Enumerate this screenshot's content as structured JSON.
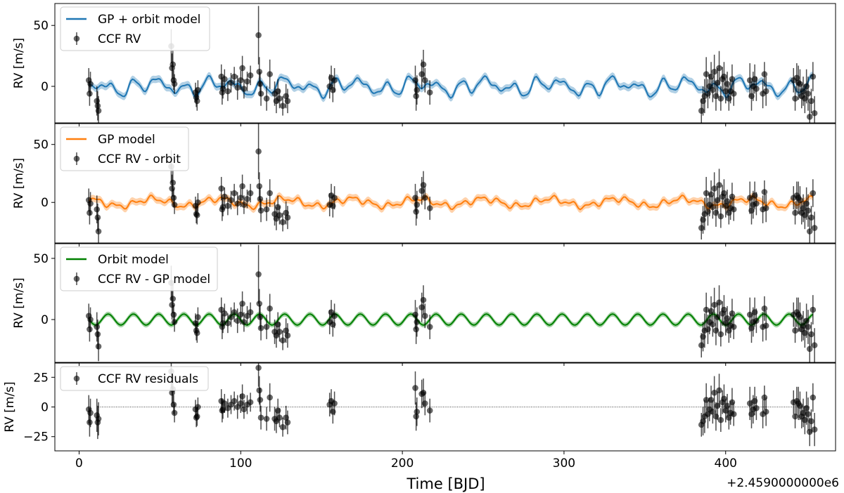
{
  "chart_data": {
    "type": "line",
    "xlabel": "Time [BJD]",
    "x_offset_label": "+2.4590000000e6",
    "xlim": [
      -15,
      468
    ],
    "xticks": [
      0,
      100,
      200,
      300,
      400
    ],
    "xtick_labels": [
      "0",
      "100",
      "200",
      "300",
      "400"
    ],
    "colors": {
      "blue": "#1f77b4",
      "orange": "#ff7f0e",
      "green": "#008000",
      "points": "#000000"
    },
    "observation_times": [
      6,
      6.5,
      7,
      11,
      11.5,
      12,
      57,
      57.5,
      58,
      58.5,
      59,
      72,
      72.5,
      73,
      73.5,
      88,
      88.5,
      89,
      90,
      92,
      94,
      96,
      98,
      100,
      101,
      102,
      104,
      106,
      111,
      111.5,
      112,
      112.5,
      116,
      118,
      121,
      122,
      123,
      124,
      126,
      128,
      129,
      155,
      156,
      157,
      158,
      208,
      208.5,
      209,
      212,
      213,
      214,
      217,
      385,
      386,
      387,
      388,
      389,
      390,
      391,
      392,
      393,
      394,
      395,
      396,
      397,
      398,
      399,
      400,
      401,
      402,
      403,
      404,
      405,
      415,
      416,
      417,
      418,
      419,
      423,
      424,
      425,
      442,
      443,
      444,
      445,
      446,
      447,
      448,
      449,
      450,
      451,
      452,
      453,
      454,
      455
    ],
    "panels": [
      {
        "ylabel": "RV [m/s]",
        "ylim": [
          -30,
          68
        ],
        "yticks": [
          0,
          50
        ],
        "ytick_labels": [
          "0",
          "50"
        ],
        "legend": [
          "GP + orbit model",
          "CCF RV"
        ],
        "model": "gp_plus_orbit",
        "model_color": "#1f77b4",
        "rv_values": [
          5,
          -6,
          2,
          -12,
          -16,
          -20,
          33,
          15,
          18,
          5,
          2,
          -5,
          -9,
          -12,
          -3,
          8,
          -5,
          -2,
          6,
          -4,
          3,
          8,
          -1,
          5,
          15,
          -2,
          4,
          9,
          42,
          12,
          2,
          -6,
          -10,
          10,
          -6,
          -12,
          -4,
          -10,
          -16,
          -8,
          -12,
          0,
          7,
          -3,
          5,
          5,
          -8,
          -3,
          10,
          18,
          5,
          -5,
          -20,
          -12,
          -8,
          10,
          -6,
          0,
          8,
          -3,
          12,
          -8,
          3,
          15,
          -10,
          6,
          8,
          -4,
          2,
          -10,
          -4,
          6,
          -6,
          5,
          -8,
          0,
          6,
          -2,
          -6,
          10,
          -4,
          5,
          -10,
          7,
          3,
          2,
          -8,
          -4,
          -10,
          0,
          -6,
          -25,
          -12,
          8,
          -22,
          -8,
          -14,
          -5,
          -18
        ],
        "rv_errors": [
          10,
          10,
          10,
          12,
          12,
          12,
          14,
          12,
          12,
          8,
          8,
          8,
          8,
          8,
          8,
          10,
          10,
          8,
          8,
          8,
          8,
          8,
          10,
          8,
          10,
          8,
          8,
          8,
          24,
          12,
          10,
          10,
          10,
          12,
          10,
          10,
          10,
          8,
          8,
          10,
          10,
          10,
          10,
          10,
          10,
          12,
          12,
          12,
          12,
          12,
          10,
          10,
          10,
          12,
          14,
          14,
          12,
          10,
          12,
          10,
          14,
          12,
          12,
          14,
          10,
          10,
          12,
          10,
          10,
          10,
          10,
          12,
          10,
          14,
          12,
          12,
          12,
          10,
          12,
          10,
          12,
          10,
          10,
          12,
          14,
          12,
          10,
          12,
          12,
          14,
          14,
          12,
          10,
          12,
          14,
          12,
          12,
          12,
          10
        ],
        "model_band": 3
      },
      {
        "ylabel": "RV [m/s]",
        "ylim": [
          -35,
          68
        ],
        "yticks": [
          0,
          50
        ],
        "ytick_labels": [
          "0",
          "50"
        ],
        "legend": [
          "GP model",
          "CCF RV - orbit"
        ],
        "model": "gp",
        "model_color": "#ff7f0e",
        "rv_values": [
          2,
          -9,
          -1,
          -6,
          -13,
          -25,
          31,
          12,
          17,
          4,
          -2,
          -3,
          -10,
          -11,
          0,
          12,
          -6,
          -4,
          5,
          -3,
          2,
          8,
          -1,
          4,
          14,
          -2,
          3,
          8,
          44,
          14,
          3,
          -7,
          -6,
          8,
          -10,
          -14,
          -4,
          -11,
          -17,
          -9,
          -13,
          -2,
          6,
          -3,
          4,
          4,
          -8,
          -2,
          10,
          15,
          4,
          -5,
          -22,
          -15,
          -10,
          8,
          -8,
          -2,
          7,
          -4,
          12,
          -9,
          2,
          15,
          -12,
          5,
          8,
          -3,
          1,
          -9,
          -5,
          5,
          -6,
          4,
          -7,
          -2,
          6,
          -1,
          -6,
          9,
          -5,
          4,
          -9,
          6,
          4,
          2,
          -9,
          -5,
          -11,
          -1,
          -7,
          -25,
          -13,
          8,
          -22,
          -9,
          -14,
          -6,
          -18
        ],
        "rv_errors": [
          10,
          10,
          10,
          12,
          12,
          12,
          14,
          12,
          12,
          8,
          8,
          8,
          8,
          8,
          8,
          10,
          10,
          8,
          8,
          8,
          8,
          8,
          10,
          8,
          10,
          8,
          8,
          8,
          24,
          12,
          10,
          10,
          10,
          12,
          10,
          10,
          10,
          8,
          8,
          10,
          10,
          10,
          10,
          10,
          10,
          12,
          12,
          12,
          12,
          12,
          10,
          10,
          10,
          12,
          14,
          14,
          12,
          10,
          12,
          10,
          14,
          12,
          12,
          14,
          10,
          10,
          12,
          10,
          10,
          10,
          10,
          12,
          10,
          14,
          12,
          12,
          12,
          10,
          12,
          10,
          12,
          10,
          10,
          12,
          14,
          12,
          10,
          12,
          12,
          14,
          14,
          12,
          10,
          12,
          14,
          12,
          12,
          12,
          10
        ],
        "model_band": 3
      },
      {
        "ylabel": "RV [m/s]",
        "ylim": [
          -35,
          62
        ],
        "yticks": [
          0,
          50
        ],
        "ytick_labels": [
          "0",
          "50"
        ],
        "legend": [
          "Orbit model",
          "CCF RV - GP model"
        ],
        "model": "orbit",
        "model_color": "#008000",
        "rv_values": [
          3,
          -8,
          0,
          -6,
          -12,
          -22,
          30,
          12,
          17,
          4,
          -2,
          -3,
          -9,
          -11,
          2,
          8,
          -6,
          -3,
          5,
          -3,
          2,
          6,
          -1,
          4,
          13,
          -2,
          3,
          6,
          37,
          13,
          2,
          -7,
          -6,
          9,
          -10,
          -13,
          -4,
          -10,
          -17,
          -9,
          -13,
          -2,
          6,
          -4,
          3,
          4,
          -8,
          -2,
          10,
          16,
          3,
          -6,
          -21,
          -14,
          -9,
          8,
          -8,
          -2,
          7,
          -4,
          12,
          -9,
          2,
          14,
          -12,
          5,
          8,
          -3,
          1,
          -9,
          -5,
          5,
          -6,
          4,
          -7,
          -2,
          6,
          -1,
          -6,
          9,
          -5,
          4,
          -9,
          6,
          4,
          2,
          -8,
          -5,
          -11,
          -1,
          -6,
          -24,
          -12,
          8,
          -21,
          -9,
          -14,
          -6,
          -17
        ],
        "rv_errors": [
          10,
          10,
          10,
          12,
          12,
          12,
          14,
          12,
          12,
          8,
          8,
          8,
          8,
          8,
          8,
          10,
          10,
          8,
          8,
          8,
          8,
          8,
          10,
          8,
          10,
          8,
          8,
          8,
          24,
          12,
          10,
          10,
          10,
          12,
          10,
          10,
          10,
          8,
          8,
          10,
          10,
          10,
          10,
          10,
          10,
          12,
          12,
          12,
          12,
          12,
          10,
          10,
          10,
          12,
          14,
          14,
          12,
          10,
          12,
          10,
          14,
          12,
          12,
          14,
          10,
          10,
          12,
          10,
          10,
          10,
          10,
          12,
          10,
          14,
          12,
          12,
          12,
          10,
          12,
          10,
          12,
          10,
          10,
          12,
          14,
          12,
          10,
          12,
          12,
          14,
          14,
          12,
          10,
          12,
          14,
          12,
          12,
          12,
          10
        ],
        "model_band": 2
      },
      {
        "ylabel": "RV [m/s]",
        "ylim": [
          -37,
          37
        ],
        "yticks": [
          -25,
          0,
          25
        ],
        "ytick_labels": [
          "−25",
          "0",
          "25"
        ],
        "legend": [
          "CCF RV residuals"
        ],
        "model": "zero",
        "model_color": "#000000",
        "rv_values": [
          -2,
          -13,
          -5,
          -7,
          -13,
          -10,
          30,
          12,
          15,
          2,
          -5,
          -2,
          -9,
          -8,
          0,
          5,
          -3,
          -2,
          3,
          -1,
          2,
          5,
          0,
          3,
          9,
          -2,
          2,
          4,
          33,
          14,
          6,
          -9,
          -10,
          8,
          -10,
          -12,
          -3,
          -9,
          -17,
          -9,
          -13,
          2,
          5,
          -4,
          3,
          16,
          -8,
          -4,
          11,
          12,
          3,
          -3,
          -15,
          -12,
          -8,
          6,
          -6,
          -2,
          6,
          -4,
          12,
          -8,
          1,
          14,
          -11,
          4,
          7,
          -3,
          1,
          -9,
          -5,
          4,
          -6,
          3,
          -6,
          -2,
          5,
          -1,
          -6,
          8,
          -4,
          4,
          -8,
          5,
          3,
          1,
          -8,
          -5,
          -11,
          -1,
          -6,
          -21,
          -12,
          8,
          -19,
          -8,
          -13,
          -5,
          -15
        ],
        "rv_errors": [
          12,
          12,
          12,
          14,
          14,
          14,
          14,
          12,
          12,
          8,
          8,
          8,
          8,
          8,
          8,
          10,
          10,
          8,
          8,
          8,
          8,
          8,
          10,
          8,
          10,
          8,
          8,
          8,
          16,
          12,
          10,
          10,
          10,
          12,
          10,
          10,
          10,
          8,
          8,
          10,
          10,
          10,
          10,
          10,
          10,
          14,
          12,
          12,
          12,
          12,
          10,
          10,
          10,
          12,
          14,
          14,
          12,
          10,
          12,
          10,
          14,
          12,
          12,
          14,
          10,
          10,
          12,
          10,
          10,
          10,
          10,
          12,
          10,
          14,
          12,
          12,
          12,
          10,
          12,
          10,
          12,
          10,
          10,
          12,
          14,
          12,
          10,
          12,
          12,
          14,
          14,
          12,
          10,
          12,
          14,
          12,
          12,
          12,
          10
        ],
        "model_band": 0
      }
    ]
  }
}
